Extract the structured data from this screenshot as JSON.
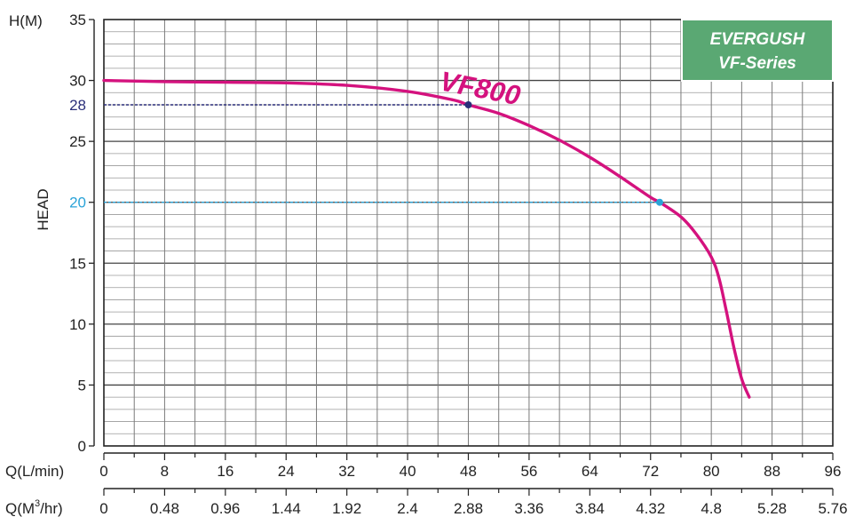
{
  "chart_data": {
    "type": "line",
    "ylabel": "HEAD",
    "y_unit_label": "H(M)",
    "x_unit_label": "Q(L/min)",
    "x2_unit_label": "Q(M",
    "x2_unit_sup": "3",
    "x2_unit_suffix": "/hr)",
    "xlim": [
      0,
      96
    ],
    "ylim": [
      0,
      35
    ],
    "y_ticks": [
      0,
      5,
      10,
      15,
      20,
      25,
      30,
      35
    ],
    "y_tick_labels": [
      "0",
      "5",
      "10",
      "15",
      "20",
      "25",
      "30",
      "35"
    ],
    "x_ticks": [
      0,
      8,
      16,
      24,
      32,
      40,
      48,
      56,
      64,
      72,
      80,
      88,
      96
    ],
    "x_tick_labels": [
      "0",
      "8",
      "16",
      "24",
      "32",
      "40",
      "48",
      "56",
      "64",
      "72",
      "80",
      "88",
      "96"
    ],
    "x2_tick_labels": [
      "0",
      "0.48",
      "0.96",
      "1.44",
      "1.92",
      "2.4",
      "2.88",
      "3.36",
      "3.84",
      "4.32",
      "4.8",
      "5.28",
      "5.76"
    ],
    "grid": true,
    "series": [
      {
        "name": "VF800",
        "color": "#d4127e",
        "x": [
          0,
          8,
          16,
          24,
          32,
          40,
          46,
          48,
          52,
          56,
          60,
          64,
          68,
          72,
          73.2,
          76,
          78,
          80,
          81,
          82,
          83,
          84,
          85
        ],
        "y": [
          30,
          29.9,
          29.85,
          29.8,
          29.6,
          29.1,
          28.4,
          28,
          27.3,
          26.3,
          25.1,
          23.7,
          22.1,
          20.4,
          20,
          18.8,
          17.4,
          15.5,
          13.8,
          11,
          8,
          5.5,
          4
        ]
      }
    ],
    "markers": [
      {
        "x": 48,
        "y": 28,
        "color": "#2b2f7a",
        "label": "28"
      },
      {
        "x": 73.2,
        "y": 20,
        "color": "#2aa3d8",
        "label": "20"
      }
    ]
  },
  "badge": {
    "line1": "EVERGUSH",
    "line2": "VF-Series",
    "color": "#5aa873"
  }
}
